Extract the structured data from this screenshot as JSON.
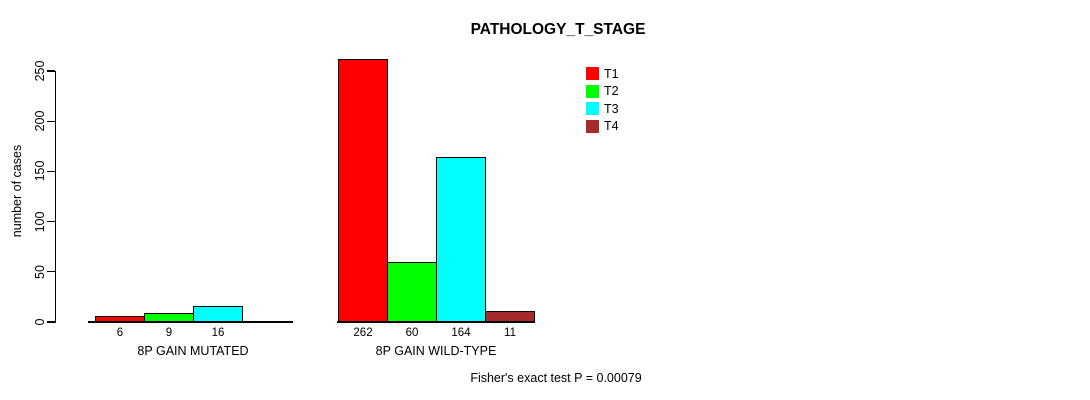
{
  "chart_data": {
    "type": "bar",
    "title": "PATHOLOGY_T_STAGE",
    "xlabel": "",
    "ylabel": "number of cases",
    "ylim": [
      0,
      250
    ],
    "yticks": [
      0,
      50,
      100,
      150,
      200,
      250
    ],
    "grid": false,
    "categories": [
      "8P GAIN MUTATED",
      "8P GAIN WILD-TYPE"
    ],
    "series": [
      {
        "name": "T1",
        "color": "#ff0000",
        "values": [
          6,
          262
        ]
      },
      {
        "name": "T2",
        "color": "#00ff00",
        "values": [
          9,
          60
        ]
      },
      {
        "name": "T3",
        "color": "#00ffff",
        "values": [
          16,
          164
        ]
      },
      {
        "name": "T4",
        "color": "#a52a2a",
        "values": [
          0,
          11
        ]
      }
    ],
    "bar_value_labels": [
      [
        "6",
        "9",
        "16",
        ""
      ],
      [
        "262",
        "60",
        "164",
        "11"
      ]
    ],
    "legend": {
      "position": "top-right",
      "entries": [
        "T1",
        "T2",
        "T3",
        "T4"
      ]
    },
    "footnote": "Fisher's exact test P = 0.00079",
    "bar_border_color": "#000000",
    "axis_color": "#000000"
  }
}
